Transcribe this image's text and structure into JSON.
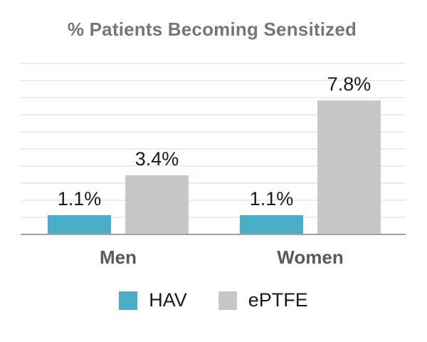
{
  "title": "% Patients Becoming Sensitized",
  "chart_data": {
    "type": "bar",
    "title": "% Patients Becoming Sensitized",
    "categories": [
      "Men",
      "Women"
    ],
    "series": [
      {
        "name": "HAV",
        "color": "#4AAEC9",
        "values": [
          1.1,
          1.1
        ],
        "labels": [
          "1.1%",
          "1.1%"
        ]
      },
      {
        "name": "ePTFE",
        "color": "#C7C7C7",
        "values": [
          3.4,
          7.8
        ],
        "labels": [
          "3.4%",
          "7.8%"
        ]
      }
    ],
    "xlabel": "",
    "ylabel": "",
    "ylim": [
      0,
      10
    ],
    "gridline_step": 1,
    "grid": true,
    "legend_position": "bottom"
  },
  "colors": {
    "title_text": "#767676",
    "category_text": "#595959",
    "label_text": "#1a1a1a",
    "gridline": "#ececec",
    "axis_line": "#a2a2a2",
    "background": "#ffffff"
  }
}
